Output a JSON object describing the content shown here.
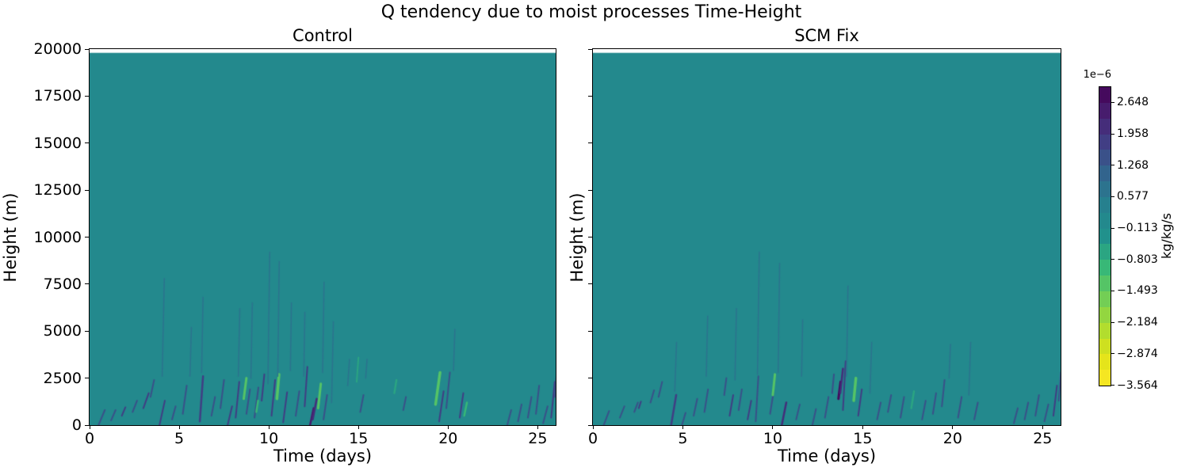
{
  "chart_data": {
    "type": "heatmap",
    "title": "Q tendency due to moist processes Time-Height",
    "xlabel": "Time (days)",
    "ylabel": "Height (m)",
    "xlim": [
      0,
      26
    ],
    "ylim": [
      0,
      20000
    ],
    "x_ticks": [
      0,
      5,
      10,
      15,
      20,
      25
    ],
    "y_ticks": [
      0,
      2500,
      5000,
      7500,
      10000,
      12500,
      15000,
      17500,
      20000
    ],
    "value_unit": "kg/kg/s",
    "value_scale": "1e−6",
    "colormap": "viridis reversed, 19 discrete levels",
    "level_boundaries_1e6": [
      -3.564,
      -3.219,
      -2.874,
      -2.529,
      -2.184,
      -1.839,
      -1.493,
      -1.148,
      -0.803,
      -0.458,
      -0.113,
      0.232,
      0.577,
      0.923,
      1.268,
      1.613,
      1.958,
      2.303,
      2.648,
      2.993
    ],
    "background_value_1e6": 0.0,
    "data_top_height_m": 19800,
    "legend_position": "right colorbar",
    "grid": false,
    "streak_format": "[day, base_height_m, height_extent_m, day_slant, value_in_1e-6_kg/kg/s, line_width_px]",
    "panels": [
      {
        "title": "Control",
        "y_tick_labels_shown": true,
        "streaks": [
          [
            0.5,
            0,
            800,
            0.35,
            1.6,
            2
          ],
          [
            1.2,
            250,
            550,
            0.25,
            1.4,
            2
          ],
          [
            1.8,
            500,
            450,
            0.2,
            1.7,
            2
          ],
          [
            2.4,
            700,
            600,
            0.25,
            1.4,
            2
          ],
          [
            3.0,
            900,
            800,
            0.3,
            1.7,
            2
          ],
          [
            3.4,
            1500,
            900,
            0.2,
            1.4,
            2
          ],
          [
            3.9,
            0,
            1300,
            0.3,
            1.8,
            2
          ],
          [
            4.05,
            2600,
            5200,
            0.12,
            0.75,
            1.5
          ],
          [
            4.6,
            300,
            700,
            0.2,
            1.4,
            2
          ],
          [
            5.2,
            600,
            1500,
            0.22,
            1.5,
            2
          ],
          [
            5.6,
            2600,
            2600,
            0.08,
            0.65,
            1.5
          ],
          [
            6.15,
            200,
            2400,
            0.18,
            1.9,
            2.5
          ],
          [
            6.25,
            2800,
            4000,
            0.08,
            0.75,
            1.5
          ],
          [
            6.8,
            500,
            1000,
            0.2,
            1.4,
            2
          ],
          [
            7.3,
            900,
            1500,
            0.2,
            1.5,
            2
          ],
          [
            7.7,
            0,
            1000,
            0.25,
            1.7,
            2
          ],
          [
            8.15,
            400,
            1900,
            0.2,
            1.7,
            2
          ],
          [
            8.3,
            2600,
            3600,
            0.08,
            0.7,
            1.5
          ],
          [
            8.6,
            1400,
            1100,
            0.15,
            -1.2,
            3
          ],
          [
            8.75,
            600,
            1300,
            0.2,
            1.6,
            2
          ],
          [
            9.0,
            2500,
            4000,
            0.08,
            0.7,
            1.5
          ],
          [
            9.2,
            400,
            1600,
            0.22,
            1.5,
            2
          ],
          [
            9.3,
            700,
            600,
            0.1,
            -0.9,
            2.5
          ],
          [
            9.6,
            1300,
            1400,
            0.15,
            1.7,
            2
          ],
          [
            9.95,
            2200,
            7000,
            0.1,
            0.8,
            1.5
          ],
          [
            10.15,
            500,
            1900,
            0.2,
            1.7,
            2
          ],
          [
            10.45,
            1400,
            1300,
            0.12,
            -1.3,
            3.5
          ],
          [
            10.5,
            2600,
            6100,
            0.08,
            0.7,
            1.5
          ],
          [
            10.8,
            150,
            1600,
            0.22,
            1.9,
            2
          ],
          [
            11.2,
            2900,
            3600,
            0.06,
            0.7,
            1.5
          ],
          [
            11.5,
            500,
            1300,
            0.2,
            1.5,
            2
          ],
          [
            11.95,
            2600,
            3400,
            0.06,
            0.7,
            1.5
          ],
          [
            12.0,
            1000,
            2100,
            0.15,
            1.7,
            2
          ],
          [
            12.3,
            0,
            900,
            0.2,
            2.6,
            2.5
          ],
          [
            12.45,
            300,
            1100,
            0.22,
            2.2,
            2.5
          ],
          [
            12.75,
            900,
            1300,
            0.15,
            -1.2,
            3
          ],
          [
            13.0,
            2800,
            4800,
            0.08,
            0.75,
            1.5
          ],
          [
            13.05,
            300,
            1300,
            0.2,
            1.5,
            2
          ],
          [
            13.5,
            1200,
            4300,
            0.1,
            0.75,
            1.5
          ],
          [
            14.4,
            2100,
            1400,
            0.1,
            0.7,
            1.5
          ],
          [
            14.9,
            2300,
            1300,
            0.1,
            -0.7,
            2
          ],
          [
            15.1,
            700,
            900,
            0.18,
            1.5,
            2
          ],
          [
            15.4,
            2500,
            1000,
            0.08,
            0.65,
            1.5
          ],
          [
            17.0,
            1700,
            700,
            0.12,
            -0.8,
            2.5
          ],
          [
            17.5,
            800,
            700,
            0.15,
            1.3,
            2
          ],
          [
            19.3,
            1100,
            1700,
            0.25,
            -1.3,
            3.5
          ],
          [
            19.5,
            200,
            1600,
            0.25,
            1.9,
            2
          ],
          [
            19.9,
            900,
            1900,
            0.2,
            1.6,
            2
          ],
          [
            20.3,
            2900,
            2200,
            0.08,
            0.7,
            1.5
          ],
          [
            20.65,
            400,
            1300,
            0.2,
            1.8,
            2
          ],
          [
            20.9,
            500,
            700,
            0.15,
            -0.9,
            2.5
          ],
          [
            23.3,
            0,
            800,
            0.22,
            1.4,
            2
          ],
          [
            23.9,
            200,
            900,
            0.2,
            1.4,
            2
          ],
          [
            24.45,
            400,
            1100,
            0.2,
            1.6,
            2
          ],
          [
            24.9,
            600,
            1500,
            0.18,
            1.4,
            2
          ],
          [
            25.3,
            100,
            900,
            0.25,
            1.6,
            2
          ],
          [
            25.75,
            400,
            1900,
            0.2,
            1.8,
            2
          ],
          [
            25.95,
            1500,
            1200,
            0.1,
            1.4,
            2
          ]
        ]
      },
      {
        "title": "SCM Fix",
        "y_tick_labels_shown": false,
        "streaks": [
          [
            0.6,
            0,
            750,
            0.3,
            1.6,
            2
          ],
          [
            1.5,
            400,
            600,
            0.25,
            1.4,
            2
          ],
          [
            2.3,
            700,
            500,
            0.2,
            1.6,
            2
          ],
          [
            2.55,
            900,
            350,
            0.12,
            1.9,
            2
          ],
          [
            3.2,
            1200,
            650,
            0.2,
            1.4,
            2
          ],
          [
            3.65,
            1500,
            800,
            0.2,
            1.6,
            2
          ],
          [
            4.35,
            0,
            1600,
            0.28,
            1.9,
            2.5
          ],
          [
            4.55,
            1800,
            2600,
            0.1,
            0.75,
            1.5
          ],
          [
            4.95,
            0,
            650,
            0.2,
            1.5,
            2
          ],
          [
            5.6,
            500,
            900,
            0.2,
            1.4,
            2
          ],
          [
            6.2,
            700,
            1200,
            0.2,
            1.5,
            2
          ],
          [
            6.3,
            2600,
            3200,
            0.08,
            0.7,
            1.5
          ],
          [
            7.3,
            1600,
            900,
            0.12,
            1.5,
            2
          ],
          [
            7.6,
            500,
            1100,
            0.2,
            1.7,
            2
          ],
          [
            7.9,
            2400,
            3800,
            0.08,
            0.75,
            1.5
          ],
          [
            8.1,
            800,
            1100,
            0.18,
            1.5,
            2
          ],
          [
            8.6,
            300,
            1000,
            0.2,
            1.7,
            2
          ],
          [
            9.05,
            200,
            2400,
            0.15,
            1.6,
            2
          ],
          [
            9.15,
            2700,
            6500,
            0.1,
            0.8,
            1.5
          ],
          [
            9.85,
            600,
            1200,
            0.2,
            1.6,
            2
          ],
          [
            10.0,
            1600,
            1100,
            0.12,
            -1.2,
            3
          ],
          [
            10.3,
            2800,
            5800,
            0.08,
            0.7,
            1.5
          ],
          [
            10.5,
            0,
            1200,
            0.25,
            2.0,
            2.5
          ],
          [
            11.3,
            300,
            800,
            0.2,
            1.5,
            2
          ],
          [
            11.6,
            2600,
            3000,
            0.06,
            0.7,
            1.5
          ],
          [
            12.2,
            0,
            850,
            0.2,
            1.6,
            2
          ],
          [
            12.9,
            400,
            1100,
            0.2,
            1.5,
            2
          ],
          [
            13.3,
            1700,
            1000,
            0.1,
            1.5,
            2
          ],
          [
            13.65,
            1400,
            900,
            0.12,
            2.8,
            3
          ],
          [
            13.75,
            1700,
            1300,
            0.15,
            2.3,
            2.5
          ],
          [
            13.9,
            800,
            2600,
            0.15,
            1.8,
            2
          ],
          [
            14.1,
            2600,
            4800,
            0.08,
            0.75,
            1.5
          ],
          [
            14.5,
            1300,
            1200,
            0.12,
            -1.3,
            3.5
          ],
          [
            14.75,
            500,
            1400,
            0.2,
            1.7,
            2
          ],
          [
            15.4,
            1700,
            2700,
            0.1,
            0.7,
            1.5
          ],
          [
            15.8,
            300,
            900,
            0.2,
            1.5,
            2
          ],
          [
            16.4,
            700,
            900,
            0.18,
            1.4,
            2
          ],
          [
            17.1,
            400,
            1100,
            0.2,
            1.5,
            2
          ],
          [
            17.7,
            900,
            900,
            0.15,
            -0.8,
            2.5
          ],
          [
            18.3,
            300,
            1000,
            0.2,
            1.5,
            2
          ],
          [
            18.9,
            600,
            1100,
            0.18,
            1.4,
            2
          ],
          [
            19.4,
            1000,
            1400,
            0.15,
            1.6,
            2
          ],
          [
            19.8,
            2500,
            1800,
            0.08,
            0.7,
            1.5
          ],
          [
            20.3,
            400,
            1100,
            0.2,
            1.6,
            2
          ],
          [
            20.9,
            1600,
            2800,
            0.1,
            0.7,
            1.5
          ],
          [
            21.2,
            300,
            900,
            0.2,
            1.5,
            2
          ],
          [
            23.4,
            100,
            800,
            0.22,
            1.4,
            2
          ],
          [
            24.0,
            300,
            900,
            0.2,
            1.5,
            2
          ],
          [
            24.6,
            500,
            1100,
            0.2,
            1.6,
            2
          ],
          [
            25.1,
            200,
            900,
            0.22,
            1.5,
            2
          ],
          [
            25.6,
            500,
            1600,
            0.2,
            1.7,
            2
          ],
          [
            25.9,
            1300,
            1500,
            0.12,
            1.5,
            2
          ]
        ]
      }
    ]
  },
  "colorbar": {
    "offset_label": "1e−6",
    "unit_label": "kg/kg/s",
    "tick_labels": [
      "2.648",
      "1.958",
      "1.268",
      "0.577",
      "−0.113",
      "−0.803",
      "−1.493",
      "−2.184",
      "−2.874",
      "−3.564"
    ],
    "tick_values_1e6": [
      2.648,
      1.958,
      1.268,
      0.577,
      -0.113,
      -0.803,
      -1.493,
      -2.184,
      -2.874,
      -3.564
    ],
    "vmin_1e6": -3.564,
    "vmax_1e6": 2.993,
    "segment_colors_bottom_to_top": [
      "#f5e622",
      "#e5e41b",
      "#cee020",
      "#b2dd2e",
      "#93d640",
      "#73ce55",
      "#55c466",
      "#38b877",
      "#2ba582",
      "#21918c",
      "#23898d",
      "#26808e",
      "#2c738e",
      "#32648d",
      "#3a5189",
      "#413e84",
      "#452d7a",
      "#471c6d",
      "#450a5d"
    ]
  }
}
